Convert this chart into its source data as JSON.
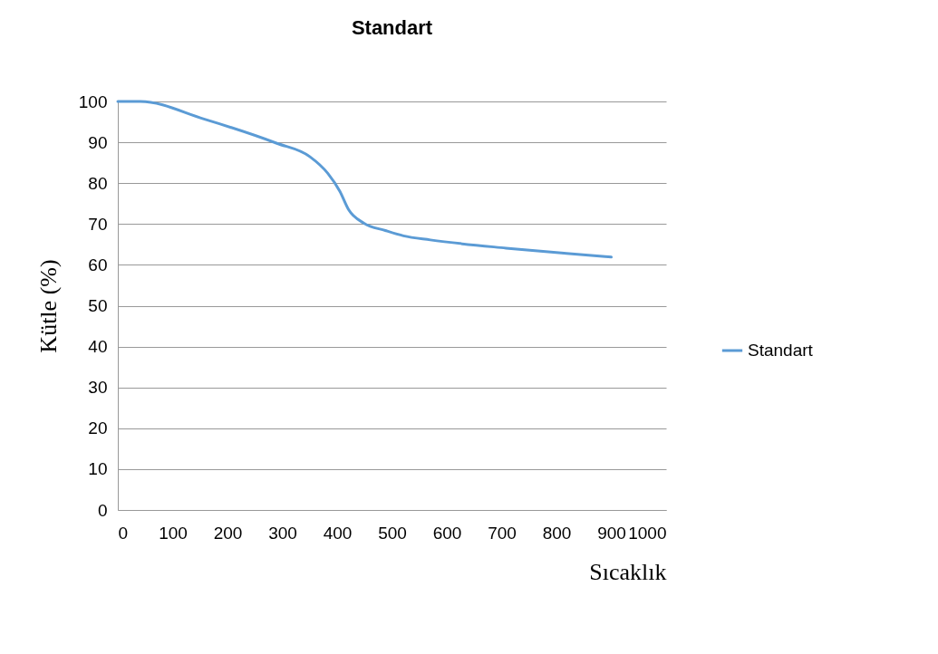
{
  "chart_data": {
    "type": "line",
    "title": "Standart",
    "xlabel": "Sıcaklık",
    "ylabel": "Kütle (%)",
    "xlim": [
      0,
      1000
    ],
    "xticks": [
      0,
      100,
      200,
      300,
      400,
      500,
      600,
      700,
      800,
      900,
      1000
    ],
    "ylim": [
      0,
      100
    ],
    "yticks": [
      0,
      10,
      20,
      30,
      40,
      50,
      60,
      70,
      80,
      90,
      100
    ],
    "grid": "y",
    "legend": "right",
    "marker": "none",
    "line_style": "solid",
    "series": [
      {
        "name": "Standart",
        "color": "#5b9bd5",
        "x": [
          0,
          41,
          157,
          289,
          350,
          383,
          405,
          421,
          449,
          488,
          521,
          570,
          708,
          818,
          900
        ],
        "values": [
          100,
          100,
          95.7,
          89.8,
          86.5,
          82.4,
          78,
          73.5,
          70.2,
          68.4,
          67.1,
          66.1,
          64.1,
          62.8,
          61.9
        ]
      }
    ]
  }
}
